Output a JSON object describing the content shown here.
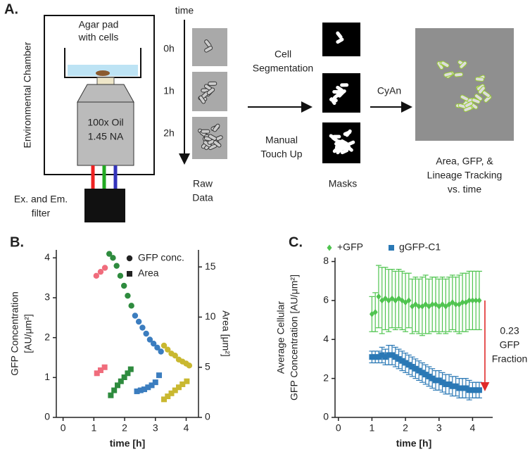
{
  "panel_a": {
    "panel_label": "A.",
    "chamber": "Environmental Chamber",
    "agar": [
      "Agar pad",
      "with cells"
    ],
    "objective": [
      "100x Oil",
      "1.45 NA"
    ],
    "filter": [
      "Ex. and Em.",
      "filter"
    ],
    "time": "time",
    "timepoints": [
      "0h",
      "1h",
      "2h"
    ],
    "raw": [
      "Raw",
      "Data"
    ],
    "segmentation": [
      "Cell",
      "Segmentation"
    ],
    "touchup": [
      "Manual",
      "Touch Up"
    ],
    "masks": "Masks",
    "cyan": "CyAn",
    "output": [
      "Area, GFP, &",
      "Lineage Tracking",
      "vs. time"
    ]
  },
  "chart_data": [
    {
      "type": "scatter",
      "panel_label": "B.",
      "xlabel": "time [h]",
      "ylabel": [
        "GFP Concentration",
        "[AU/μm²]"
      ],
      "y2label": "Area [μm²]",
      "xlim": [
        -0.22,
        4.4
      ],
      "xticks": [
        0,
        1,
        2,
        3,
        4
      ],
      "ylim": [
        0,
        4.2
      ],
      "yticks": [
        0,
        1,
        2,
        3,
        4
      ],
      "y2lim": [
        0,
        16.7
      ],
      "y2ticks": [
        0,
        5,
        10,
        15
      ],
      "legend": "upper right",
      "series": [
        {
          "name": "GFP conc.",
          "marker": "circle",
          "legend_color": "#222222",
          "x": [
            1.08,
            1.22,
            1.36,
            1.5,
            1.62,
            1.74,
            1.86,
            1.98,
            2.1,
            2.22,
            2.34,
            2.46,
            2.58,
            2.7,
            2.82,
            2.94,
            3.06,
            3.18,
            3.28,
            3.4,
            3.52,
            3.64,
            3.76,
            3.88,
            4.0,
            4.1
          ],
          "values": [
            3.55,
            3.65,
            3.75,
            4.1,
            4.0,
            3.8,
            3.55,
            3.3,
            3.05,
            2.8,
            2.55,
            2.4,
            2.25,
            2.1,
            1.95,
            1.85,
            1.75,
            1.65,
            1.8,
            1.7,
            1.6,
            1.55,
            1.45,
            1.4,
            1.35,
            1.3
          ],
          "colors": [
            "#f06c7c",
            "#f06c7c",
            "#f06c7c",
            "#2e8b3e",
            "#2e8b3e",
            "#2e8b3e",
            "#2e8b3e",
            "#2e8b3e",
            "#2e8b3e",
            "#2e8b3e",
            "#3b7dbf",
            "#3b7dbf",
            "#3b7dbf",
            "#3b7dbf",
            "#3b7dbf",
            "#3b7dbf",
            "#3b7dbf",
            "#3b7dbf",
            "#c9b830",
            "#c9b830",
            "#c9b830",
            "#c9b830",
            "#c9b830",
            "#c9b830",
            "#c9b830",
            "#c9b830"
          ]
        },
        {
          "name": "Area",
          "marker": "square",
          "axis": "y2",
          "legend_color": "#222222",
          "x": [
            1.1,
            1.22,
            1.35,
            1.55,
            1.66,
            1.77,
            1.88,
            1.99,
            2.1,
            2.2,
            2.4,
            2.52,
            2.64,
            2.76,
            2.88,
            3.0,
            3.12,
            3.28,
            3.4,
            3.52,
            3.64,
            3.76,
            3.88,
            4.02
          ],
          "values": [
            4.4,
            4.7,
            5.0,
            2.2,
            2.7,
            3.2,
            3.6,
            4.0,
            4.4,
            4.8,
            2.6,
            2.7,
            2.8,
            3.0,
            3.2,
            3.5,
            4.2,
            1.8,
            2.1,
            2.4,
            2.7,
            3.0,
            3.3,
            3.6
          ],
          "colors": [
            "#f06c7c",
            "#f06c7c",
            "#f06c7c",
            "#2e8b3e",
            "#2e8b3e",
            "#2e8b3e",
            "#2e8b3e",
            "#2e8b3e",
            "#2e8b3e",
            "#2e8b3e",
            "#3b7dbf",
            "#3b7dbf",
            "#3b7dbf",
            "#3b7dbf",
            "#3b7dbf",
            "#3b7dbf",
            "#3b7dbf",
            "#c9b830",
            "#c9b830",
            "#c9b830",
            "#c9b830",
            "#c9b830",
            "#c9b830",
            "#c9b830"
          ]
        }
      ]
    },
    {
      "type": "errorbar",
      "panel_label": "C.",
      "xlabel": "time [h]",
      "ylabel": [
        "Average Cellular",
        "GFP Concentration [AU/μm²]"
      ],
      "xlim": [
        -0.1,
        4.6
      ],
      "xticks": [
        0,
        1,
        2,
        3,
        4
      ],
      "ylim": [
        0,
        8.2
      ],
      "yticks": [
        0,
        2,
        4,
        6,
        8
      ],
      "legend": "upper left",
      "x": [
        1.0,
        1.1,
        1.2,
        1.3,
        1.4,
        1.5,
        1.6,
        1.7,
        1.8,
        1.9,
        2.0,
        2.1,
        2.2,
        2.3,
        2.4,
        2.5,
        2.6,
        2.7,
        2.8,
        2.9,
        3.0,
        3.1,
        3.2,
        3.3,
        3.4,
        3.5,
        3.6,
        3.7,
        3.8,
        3.9,
        4.0,
        4.1,
        4.2
      ],
      "series": [
        {
          "name": "+GFP",
          "color": "#4fc44f",
          "marker": "diamond",
          "values": [
            5.3,
            5.4,
            6.2,
            6.0,
            6.1,
            6.0,
            6.1,
            6.0,
            6.1,
            6.0,
            5.9,
            6.0,
            5.7,
            5.8,
            5.7,
            5.7,
            5.8,
            5.7,
            5.8,
            5.8,
            5.7,
            5.8,
            5.7,
            5.8,
            5.9,
            5.8,
            5.8,
            5.9,
            5.9,
            6.0,
            6.0,
            6.0,
            6.0
          ],
          "errors": [
            0.9,
            1.0,
            1.6,
            1.7,
            1.6,
            1.6,
            1.5,
            1.5,
            1.5,
            1.5,
            1.5,
            1.4,
            1.4,
            1.4,
            1.4,
            1.5,
            1.5,
            1.4,
            1.4,
            1.4,
            1.4,
            1.4,
            1.4,
            1.4,
            1.4,
            1.4,
            1.5,
            1.5,
            1.5,
            1.5,
            1.5,
            1.5,
            1.5
          ]
        },
        {
          "name": "gGFP-C1",
          "color": "#2a78b5",
          "marker": "square",
          "values": [
            3.1,
            3.1,
            3.1,
            3.2,
            3.1,
            3.2,
            3.2,
            3.1,
            3.0,
            2.9,
            2.8,
            2.7,
            2.6,
            2.5,
            2.4,
            2.3,
            2.2,
            2.1,
            2.0,
            1.9,
            1.9,
            1.8,
            1.7,
            1.7,
            1.6,
            1.6,
            1.5,
            1.5,
            1.5,
            1.4,
            1.4,
            1.4,
            1.4
          ],
          "errors": [
            0.3,
            0.3,
            0.3,
            0.4,
            0.4,
            0.5,
            0.5,
            0.5,
            0.5,
            0.5,
            0.5,
            0.5,
            0.5,
            0.5,
            0.5,
            0.5,
            0.5,
            0.5,
            0.5,
            0.5,
            0.5,
            0.5,
            0.5,
            0.5,
            0.5,
            0.5,
            0.5,
            0.5,
            0.5,
            0.5,
            0.4,
            0.4,
            0.4
          ]
        }
      ],
      "annotation": [
        "0.23",
        "GFP",
        "Fraction"
      ],
      "annotation_color": "#e02a2a"
    }
  ]
}
